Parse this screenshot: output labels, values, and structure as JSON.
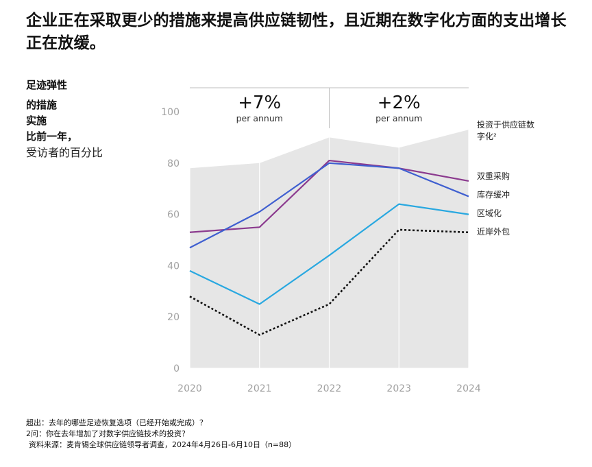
{
  "header": {
    "title": "企业正在采取更少的措施来提高供应链韧性，且近期在数字化方面的支出增长正在放缓。"
  },
  "sidebar": {
    "line1": "足迹弹性",
    "line2": "的措施",
    "line3": "实施",
    "line4": "比前一年，",
    "unit": "受访者的百分比"
  },
  "chart_data": {
    "type": "line",
    "title": "",
    "xlabel": "",
    "ylabel": "受访者的百分比",
    "x": [
      "2020",
      "2021",
      "2022",
      "2023",
      "2024"
    ],
    "ylim": [
      0,
      100
    ],
    "yticks": [
      "0",
      "20",
      "40",
      "60",
      "80",
      "100"
    ],
    "grid": false,
    "area_series": {
      "name": "投资于供应链数字化²",
      "values": [
        78,
        80,
        90,
        86,
        93
      ]
    },
    "series": [
      {
        "name": "双重采购",
        "values": [
          53,
          55,
          81,
          78,
          73
        ],
        "color": "#8B3A8E",
        "style": "solid"
      },
      {
        "name": "库存缓冲",
        "values": [
          47,
          61,
          80,
          78,
          67
        ],
        "color": "#3F5FD0",
        "style": "solid"
      },
      {
        "name": "区域化",
        "values": [
          38,
          25,
          44,
          64,
          60
        ],
        "color": "#29A8E0",
        "style": "solid"
      },
      {
        "name": "近岸外包",
        "values": [
          28,
          13,
          25,
          54,
          53
        ],
        "color": "#111111",
        "style": "dotted"
      }
    ],
    "growth_annotations": [
      {
        "value": "+7%",
        "unit": "per annum"
      },
      {
        "value": "+2%",
        "unit": "per annum"
      }
    ],
    "legend": {
      "area_label_line1": "投资于供应链数",
      "area_label_line2": "字化²"
    }
  },
  "footnotes": {
    "note1": "超出：去年的哪些足迹恢复选项（已经开始或完成）？",
    "note2": "2问：你在去年增加了对数字供应链技术的投资？",
    "source": "资料来源：麦肯锡全球供应链领导者调查，2024年4月26日-6月10日（n=88）"
  },
  "colors": {
    "area": "#E6E6E6",
    "axis_text": "#A0A0A0",
    "label_text": "#222222"
  }
}
